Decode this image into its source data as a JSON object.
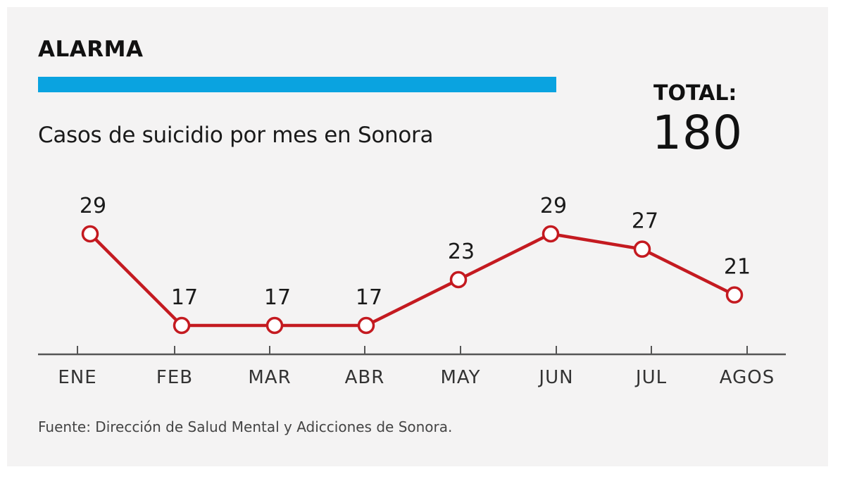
{
  "header": {
    "kicker": "ALARMA",
    "total_label": "TOTAL:",
    "total_value": "180"
  },
  "colors": {
    "accent": "#0aa3e0",
    "line": "#c41a20",
    "axis": "#555555"
  },
  "chart_data": {
    "type": "line",
    "title": "Casos de suicidio por mes en Sonora",
    "categories": [
      "ENE",
      "FEB",
      "MAR",
      "ABR",
      "MAY",
      "JUN",
      "JUL",
      "AGOS"
    ],
    "series": [
      {
        "values": [
          29,
          17,
          17,
          17,
          23,
          29,
          27,
          21
        ]
      }
    ],
    "xlabel": "",
    "ylabel": "",
    "grid": false,
    "legend": "none"
  },
  "footer": {
    "source": "Fuente: Dirección de Salud Mental y Adicciones de Sonora."
  }
}
